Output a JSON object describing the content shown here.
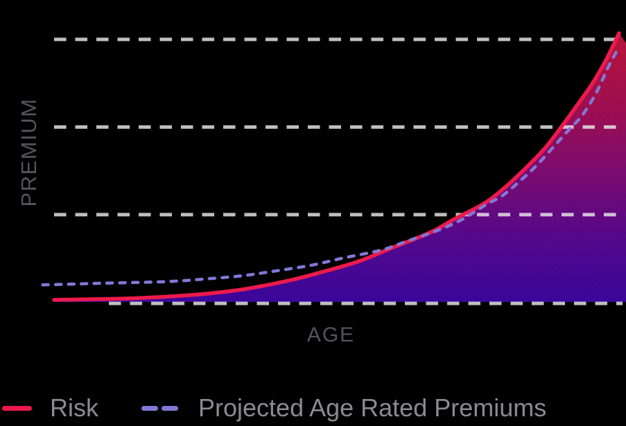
{
  "colors": {
    "background": "#000000",
    "risk": "#EC1A4C",
    "projected": "#8377D6",
    "legend_text": "#8B8B90",
    "axis_label": "#54545A",
    "gridline": "#E9E9E9"
  },
  "legend": {
    "items": [
      {
        "label": "Risk",
        "swatch": "solid-line",
        "color": "#EC1A4C"
      },
      {
        "label": "Projected Age Rated Premiums",
        "swatch": "dashed-line",
        "color": "#8377D6"
      }
    ]
  },
  "chart_data": {
    "type": "area",
    "title": "",
    "xlabel": "AGE",
    "ylabel": "PREMIUM",
    "axis_tick_labels_visible": false,
    "x_range": [
      0,
      100
    ],
    "y_range": [
      0,
      100
    ],
    "gridlines": {
      "orientation": "horizontal",
      "style": "dashed",
      "color": "#E9E9E9",
      "count": 4,
      "positions_norm": [
        97.7,
        65.1,
        32.5,
        -0.5
      ]
    },
    "legend_position": "bottom-left",
    "series": [
      {
        "name": "Risk",
        "type": "line",
        "line_style": "solid",
        "color": "#EC1A4C",
        "area_fill": true,
        "fill_gradient": [
          "#EE1A4A",
          "#CC1369",
          "#A01092",
          "#6E0BB4",
          "#4C08C8"
        ],
        "fill_gradient_offsets": [
          0,
          0.28,
          0.52,
          0.76,
          1
        ],
        "points": [
          {
            "x": 0,
            "y": 0.8
          },
          {
            "x": 6,
            "y": 1.0
          },
          {
            "x": 12.5,
            "y": 1.3
          },
          {
            "x": 20,
            "y": 2.0
          },
          {
            "x": 27,
            "y": 3.1
          },
          {
            "x": 34,
            "y": 4.9
          },
          {
            "x": 42,
            "y": 8.2
          },
          {
            "x": 48,
            "y": 11.5
          },
          {
            "x": 54,
            "y": 15.2
          },
          {
            "x": 60,
            "y": 20.3
          },
          {
            "x": 66.5,
            "y": 25.8
          },
          {
            "x": 71,
            "y": 31.0
          },
          {
            "x": 76.3,
            "y": 36.9
          },
          {
            "x": 80,
            "y": 43.0
          },
          {
            "x": 83.7,
            "y": 50.3
          },
          {
            "x": 87,
            "y": 57.5
          },
          {
            "x": 89.8,
            "y": 65.2
          },
          {
            "x": 92.5,
            "y": 73.0
          },
          {
            "x": 95.3,
            "y": 81.4
          },
          {
            "x": 97.8,
            "y": 90.5
          },
          {
            "x": 100,
            "y": 100
          }
        ]
      },
      {
        "name": "Projected Age Rated Premiums",
        "type": "line",
        "line_style": "dashed",
        "color": "#8377D6",
        "area_fill": false,
        "points": [
          {
            "x": -2,
            "y": 6.4
          },
          {
            "x": 4,
            "y": 6.7
          },
          {
            "x": 8.8,
            "y": 7.0
          },
          {
            "x": 15,
            "y": 7.3
          },
          {
            "x": 21,
            "y": 7.7
          },
          {
            "x": 27,
            "y": 8.6
          },
          {
            "x": 33.4,
            "y": 9.8
          },
          {
            "x": 39,
            "y": 11.5
          },
          {
            "x": 45.6,
            "y": 13.7
          },
          {
            "x": 51,
            "y": 16.3
          },
          {
            "x": 57.9,
            "y": 19.3
          },
          {
            "x": 62,
            "y": 22.3
          },
          {
            "x": 67.7,
            "y": 26.5
          },
          {
            "x": 72,
            "y": 30.5
          },
          {
            "x": 76.3,
            "y": 36.0
          },
          {
            "x": 79.5,
            "y": 39.8
          },
          {
            "x": 82.5,
            "y": 45.1
          },
          {
            "x": 85.5,
            "y": 51.0
          },
          {
            "x": 88.6,
            "y": 58.2
          },
          {
            "x": 91,
            "y": 63.8
          },
          {
            "x": 93.5,
            "y": 69.5
          },
          {
            "x": 96,
            "y": 78.0
          },
          {
            "x": 98,
            "y": 87.0
          },
          {
            "x": 100,
            "y": 95.0
          }
        ]
      }
    ]
  }
}
